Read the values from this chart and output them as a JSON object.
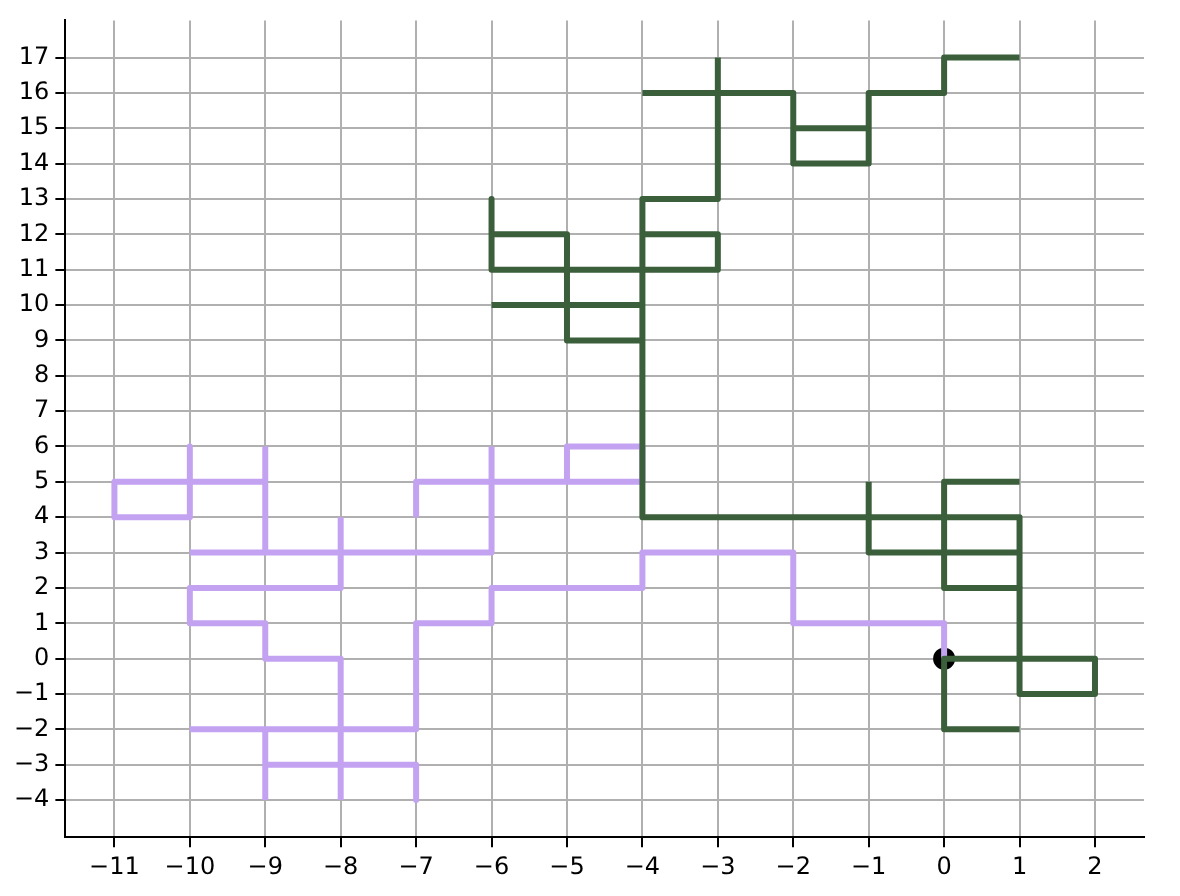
{
  "chart_data": {
    "type": "line",
    "grid": true,
    "legend": false,
    "marker": "none",
    "line_style": "solid",
    "xlim": [
      -11.65,
      2.65
    ],
    "xticks": [
      -11,
      -10,
      -9,
      -8,
      -7,
      -6,
      -5,
      -4,
      -3,
      -2,
      -1,
      0,
      1,
      2
    ],
    "ylim": [
      -5.05,
      18.05
    ],
    "yticks": [
      -4,
      -3,
      -2,
      -1,
      0,
      1,
      2,
      3,
      4,
      5,
      6,
      7,
      8,
      9,
      10,
      11,
      12,
      13,
      14,
      15,
      16,
      17
    ],
    "series": [
      {
        "color": "#c4a2f2",
        "x": [
          0,
          0,
          -2,
          -2,
          -4,
          -4,
          -6,
          -6,
          -7,
          -7,
          -10
        ],
        "values": [
          0,
          1,
          1,
          3,
          3,
          2,
          2,
          1,
          1,
          -2,
          -2
        ]
      },
      {
        "color": "#c4a2f2",
        "x": [
          -9,
          -9,
          -9
        ],
        "values": [
          -4,
          -3,
          -2
        ]
      },
      {
        "color": "#c4a2f2",
        "x": [
          -9,
          -7,
          -7
        ],
        "values": [
          -3,
          -3,
          -4
        ]
      },
      {
        "color": "#c4a2f2",
        "x": [
          -8,
          -8,
          -9,
          -9,
          -10,
          -10,
          -8,
          -8
        ],
        "values": [
          -4,
          0,
          0,
          1,
          1,
          2,
          2,
          4
        ]
      },
      {
        "color": "#c4a2f2",
        "x": [
          -10,
          -6,
          -6
        ],
        "values": [
          3,
          3,
          6
        ]
      },
      {
        "color": "#c4a2f2",
        "x": [
          -7,
          -7,
          -4,
          -4,
          -5,
          -5
        ],
        "values": [
          4,
          5,
          5,
          6,
          6,
          5
        ]
      },
      {
        "color": "#c4a2f2",
        "x": [
          -9,
          -9
        ],
        "values": [
          3,
          6
        ]
      },
      {
        "color": "#c4a2f2",
        "x": [
          -10,
          -10,
          -11,
          -11,
          -9
        ],
        "values": [
          6,
          4,
          4,
          5,
          5
        ]
      },
      {
        "color": "#3b5e3b",
        "x": [
          1,
          0,
          0,
          2,
          2,
          1,
          1,
          0,
          0,
          1
        ],
        "values": [
          -2,
          -2,
          0,
          0,
          -1,
          -1,
          2,
          2,
          5,
          5
        ]
      },
      {
        "color": "#3b5e3b",
        "x": [
          1,
          -1,
          -1
        ],
        "values": [
          3,
          3,
          5
        ]
      },
      {
        "color": "#3b5e3b",
        "x": [
          1,
          1,
          -4,
          -4,
          -3,
          -3
        ],
        "values": [
          2,
          4,
          4,
          13,
          13,
          17
        ]
      },
      {
        "color": "#3b5e3b",
        "x": [
          -6,
          -6,
          -3,
          -3,
          -4
        ],
        "values": [
          13,
          11,
          11,
          12,
          12
        ]
      },
      {
        "color": "#3b5e3b",
        "x": [
          -6,
          -5,
          -5,
          -4
        ],
        "values": [
          12,
          12,
          9,
          9
        ]
      },
      {
        "color": "#3b5e3b",
        "x": [
          -6,
          -4
        ],
        "values": [
          10,
          10
        ]
      },
      {
        "color": "#3b5e3b",
        "x": [
          -4,
          -2,
          -2,
          -1,
          -1,
          0,
          0,
          1
        ],
        "values": [
          16,
          16,
          14,
          14,
          16,
          16,
          17,
          17
        ]
      },
      {
        "color": "#3b5e3b",
        "x": [
          -2,
          -1
        ],
        "values": [
          15,
          15
        ]
      },
      {
        "type": "scatter",
        "color": "#000000",
        "marker": "circle",
        "x": [
          0
        ],
        "values": [
          0
        ]
      }
    ]
  }
}
